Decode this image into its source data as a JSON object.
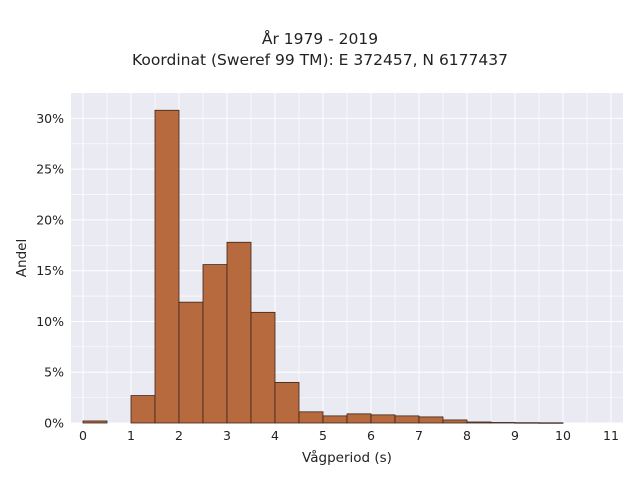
{
  "chart_data": {
    "type": "bar",
    "title": "År 1979 - 2019",
    "subtitle": "Koordinat (Sweref 99 TM): E 372457, N 6177437",
    "xlabel": "Vågperiod (s)",
    "ylabel": "Andel",
    "bin_width": 0.5,
    "bin_starts": [
      0,
      0.5,
      1,
      1.5,
      2,
      2.5,
      3,
      3.5,
      4,
      4.5,
      5,
      5.5,
      6,
      6.5,
      7,
      7.5,
      8,
      8.5,
      9,
      9.5,
      10,
      10.5
    ],
    "values": [
      0.2,
      0,
      2.7,
      30.8,
      11.9,
      15.6,
      17.8,
      10.9,
      4.0,
      1.1,
      0.7,
      0.9,
      0.8,
      0.7,
      0.6,
      0.3,
      0.1,
      0.05,
      0.03,
      0.02,
      0,
      0
    ],
    "xlim": [
      -0.25,
      11.25
    ],
    "ylim": [
      0,
      32.5
    ],
    "xticks": [
      0,
      1,
      2,
      3,
      4,
      5,
      6,
      7,
      8,
      9,
      10,
      11
    ],
    "xtick_labels": [
      "0",
      "1",
      "2",
      "3",
      "4",
      "5",
      "6",
      "7",
      "8",
      "9",
      "10",
      "11"
    ],
    "yticks": [
      0,
      5,
      10,
      15,
      20,
      25,
      30
    ],
    "ytick_labels": [
      "0%",
      "5%",
      "10%",
      "15%",
      "20%",
      "25%",
      "30%"
    ],
    "grid": true,
    "colors": {
      "bar_fill": "#b86a3f",
      "bar_edge": "#3a2418",
      "plot_bg": "#eaeaf2",
      "grid": "#ffffff"
    }
  }
}
